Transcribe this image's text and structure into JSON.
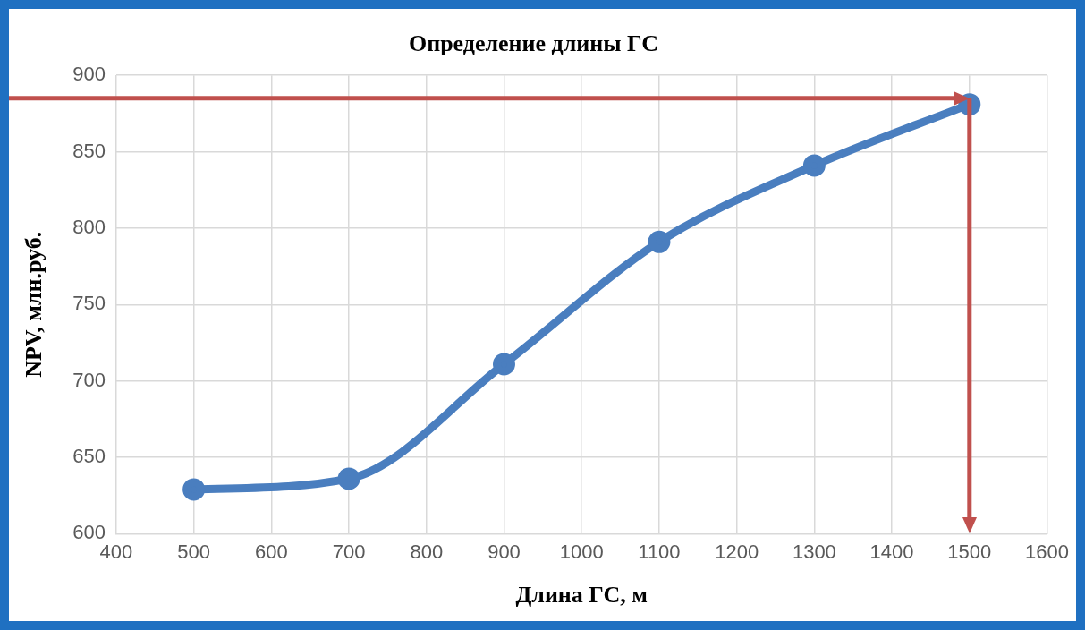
{
  "chart_data": {
    "type": "scatter",
    "title": "Определение длины ГС",
    "xlabel": "Длина ГС, м",
    "ylabel": "NPV, млн.руб.",
    "x": [
      500,
      700,
      900,
      1100,
      1300,
      1500
    ],
    "series": [
      {
        "type": "line",
        "color": "#4a7ebf",
        "values": [
          629,
          636,
          711,
          791,
          841,
          881
        ]
      }
    ],
    "xlim": [
      400,
      1600
    ],
    "xticks": [
      400,
      500,
      600,
      700,
      800,
      900,
      1000,
      1100,
      1200,
      1300,
      1400,
      1500,
      1600
    ],
    "ylim": [
      600,
      900
    ],
    "yticks": [
      600,
      650,
      700,
      750,
      800,
      850,
      900
    ],
    "grid": true,
    "legend": false,
    "marker": "circle",
    "line_style": "solid",
    "ref_lines": [
      {
        "axis": "y",
        "value": 885,
        "color": "#c0504d"
      },
      {
        "axis": "x",
        "value": 1500,
        "color": "#c0504d"
      }
    ]
  }
}
